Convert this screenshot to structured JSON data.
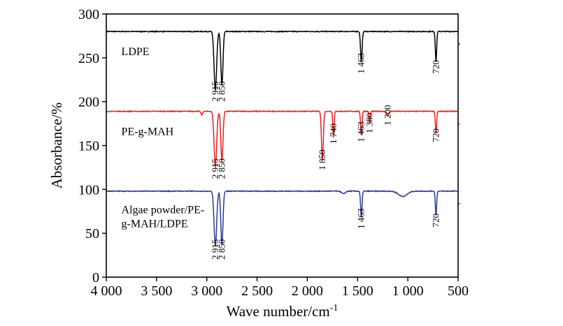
{
  "chart_data": {
    "type": "line",
    "xlabel": "Wave number/cm",
    "xlabel_sup": "-1",
    "ylabel": "Absorbance/%",
    "xlim": [
      4000,
      500
    ],
    "ylim": [
      0,
      300
    ],
    "x_reversed": true,
    "x_ticks": [
      4000,
      3500,
      3000,
      2500,
      2000,
      1500,
      1000,
      500
    ],
    "x_tick_labels": [
      "4 000",
      "3 500",
      "3 000",
      "2 500",
      "2 000",
      "1 500",
      "1 000",
      "500"
    ],
    "y_ticks": [
      0,
      50,
      100,
      150,
      200,
      250,
      300
    ],
    "y_tick_labels": [
      "0",
      "50",
      "100",
      "150",
      "200",
      "250",
      "300"
    ],
    "grid": false,
    "series": [
      {
        "name": "LDPE",
        "color": "#000000",
        "baseline": 280,
        "label_anchor": [
          3850,
          253
        ],
        "peaks": [
          {
            "x": 2915,
            "min": 213,
            "width": 18
          },
          {
            "x": 2850,
            "min": 219,
            "width": 15
          },
          {
            "x": 1463,
            "min": 245,
            "width": 11
          },
          {
            "x": 720,
            "min": 245,
            "width": 9
          }
        ],
        "peak_labels": [
          {
            "text": "2 915",
            "x": 2915,
            "y": 200
          },
          {
            "text": "2 850",
            "x": 2850,
            "y": 200
          },
          {
            "text": "1 463",
            "x": 1463,
            "y": 232
          },
          {
            "text": "720",
            "x": 720,
            "y": 232
          }
        ]
      },
      {
        "name": "PE-g-MAH",
        "color": "#e8211f",
        "baseline": 189,
        "label_anchor": [
          3850,
          162
        ],
        "peaks": [
          {
            "x": 3050,
            "min": 185,
            "width": 12
          },
          {
            "x": 2915,
            "min": 125,
            "width": 18
          },
          {
            "x": 2850,
            "min": 132,
            "width": 15
          },
          {
            "x": 1850,
            "min": 133,
            "width": 13
          },
          {
            "x": 1740,
            "min": 159,
            "width": 9
          },
          {
            "x": 1463,
            "min": 162,
            "width": 10
          },
          {
            "x": 1380,
            "min": 175,
            "width": 8
          },
          {
            "x": 1200,
            "min": 184,
            "width": 15
          },
          {
            "x": 720,
            "min": 164,
            "width": 9
          }
        ],
        "peak_labels": [
          {
            "text": "2 915",
            "x": 2915,
            "y": 112
          },
          {
            "text": "2 850",
            "x": 2850,
            "y": 112
          },
          {
            "text": "1 850",
            "x": 1850,
            "y": 122
          },
          {
            "text": "1 740",
            "x": 1740,
            "y": 152
          },
          {
            "text": "1 463",
            "x": 1463,
            "y": 154
          },
          {
            "text": "1 380",
            "x": 1380,
            "y": 164
          },
          {
            "text": "1 200",
            "x": 1200,
            "y": 173
          },
          {
            "text": "720",
            "x": 720,
            "y": 154
          }
        ]
      },
      {
        "name": "Algae powder/PE-g-MAH/LDPE",
        "name_lines": [
          "Algae powder/PE-",
          "g-MAH/LDPE"
        ],
        "color": "#2b3a98",
        "baseline": 98,
        "label_anchor": [
          3850,
          73
        ],
        "peaks": [
          {
            "x": 2915,
            "min": 35,
            "width": 18
          },
          {
            "x": 2850,
            "min": 37,
            "width": 15
          },
          {
            "x": 1640,
            "min": 95,
            "width": 25
          },
          {
            "x": 1463,
            "min": 68,
            "width": 10
          },
          {
            "x": 1050,
            "min": 92,
            "width": 60
          },
          {
            "x": 720,
            "min": 70,
            "width": 9
          }
        ],
        "peak_labels": [
          {
            "text": "2 915",
            "x": 2915,
            "y": 20
          },
          {
            "text": "2 850",
            "x": 2850,
            "y": 20
          },
          {
            "text": "1 463",
            "x": 1463,
            "y": 55
          },
          {
            "text": "720",
            "x": 720,
            "y": 57
          }
        ]
      }
    ]
  }
}
